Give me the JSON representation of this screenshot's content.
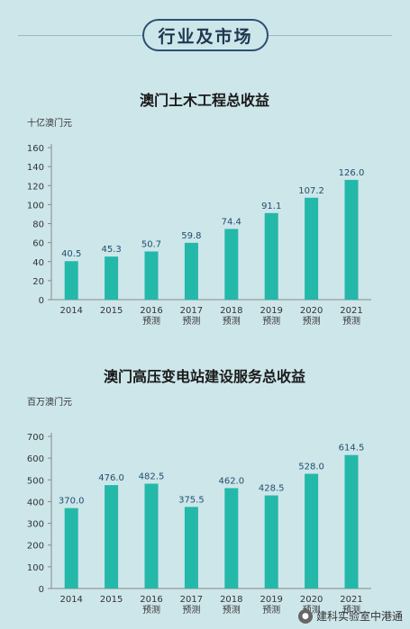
{
  "header": {
    "title": "行业及市场"
  },
  "chart_data": [
    {
      "type": "bar",
      "title": "澳门土木工程总收益",
      "ylabel": "十亿澳门元",
      "categories": [
        "2014",
        "2015",
        "2016",
        "2017",
        "2018",
        "2019",
        "2020",
        "2021"
      ],
      "sublabels": [
        "",
        "",
        "预测",
        "预测",
        "预测",
        "预测",
        "预测",
        "预测"
      ],
      "values": [
        40.5,
        45.3,
        50.7,
        59.8,
        74.4,
        91.1,
        107.2,
        126.0
      ],
      "value_labels": [
        "40.5",
        "45.3",
        "50.7",
        "59.8",
        "74.4",
        "91.1",
        "107.2",
        "126.0"
      ],
      "yticks": [
        "0",
        "20",
        "40",
        "60",
        "80",
        "100",
        "120",
        "140",
        "160"
      ],
      "ylim": [
        0,
        160
      ],
      "bar_color": "#24b8a9"
    },
    {
      "type": "bar",
      "title": "澳门高压变电站建设服务总收益",
      "ylabel": "百万澳门元",
      "categories": [
        "2014",
        "2015",
        "2016",
        "2017",
        "2018",
        "2019",
        "2020",
        "2021"
      ],
      "sublabels": [
        "",
        "",
        "预测",
        "预测",
        "预测",
        "预测",
        "预测",
        "预测"
      ],
      "values": [
        370.0,
        476.0,
        482.5,
        375.5,
        462.0,
        428.5,
        528.0,
        614.5
      ],
      "value_labels": [
        "370.0",
        "476.0",
        "482.5",
        "375.5",
        "462.0",
        "428.5",
        "528.0",
        "614.5"
      ],
      "yticks": [
        "0",
        "100",
        "200",
        "300",
        "400",
        "500",
        "600",
        "700"
      ],
      "ylim": [
        0,
        700
      ],
      "bar_color": "#24b8a9"
    }
  ],
  "watermark": {
    "text": "建科实验室中港通"
  }
}
